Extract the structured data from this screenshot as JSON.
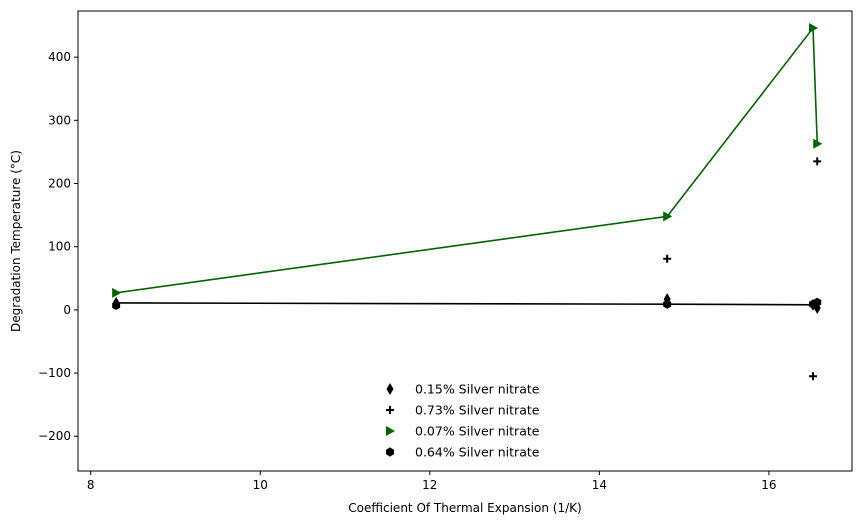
{
  "chart_data": {
    "type": "line",
    "title": "",
    "xlabel": "Coefficient Of Thermal Expansion (1/K)",
    "ylabel": "Degradation Temperature (°C)",
    "xlim": [
      7.85,
      16.98
    ],
    "ylim": [
      -255,
      473
    ],
    "xticks": [
      8,
      10,
      12,
      14,
      16
    ],
    "yticks": [
      -200,
      -100,
      0,
      100,
      200,
      300,
      400
    ],
    "grid": false,
    "legend_position": "bottom-center",
    "series": [
      {
        "name": "0.15% Silver nitrate",
        "marker": "thin_diamond",
        "color": "#000000",
        "line": false,
        "points": [
          [
            8.3,
            11
          ],
          [
            14.8,
            17
          ],
          [
            16.52,
            8
          ],
          [
            16.57,
            3
          ]
        ]
      },
      {
        "name": "0.73% Silver nitrate",
        "marker": "plus",
        "color": "#000000",
        "line": false,
        "points": [
          [
            14.8,
            81
          ],
          [
            16.52,
            -105
          ],
          [
            16.57,
            235
          ]
        ]
      },
      {
        "name": "0.07% Silver nitrate",
        "marker": "triangle-right",
        "color": "#006400",
        "line": true,
        "points": [
          [
            8.3,
            27
          ],
          [
            14.8,
            148
          ],
          [
            16.52,
            446
          ],
          [
            16.57,
            263
          ]
        ]
      },
      {
        "name": "0.64% Silver nitrate",
        "marker": "hexagon",
        "color": "#000000",
        "line": false,
        "points": [
          [
            8.3,
            7
          ],
          [
            14.8,
            9
          ],
          [
            16.52,
            9
          ],
          [
            16.57,
            12
          ]
        ]
      }
    ],
    "trendline": {
      "color": "#000000",
      "points": [
        [
          8.3,
          11
        ],
        [
          14.8,
          9
        ],
        [
          16.57,
          8
        ]
      ]
    }
  }
}
